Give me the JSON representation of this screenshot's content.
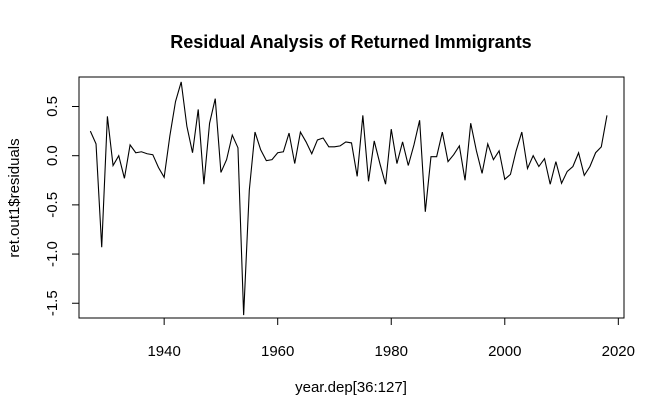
{
  "chart_data": {
    "type": "line",
    "title": "Residual Analysis of Returned Immigrants",
    "xlabel": "year.dep[36:127]",
    "ylabel": "ret.out1$residuals",
    "xlim": [
      1925,
      2021
    ],
    "ylim": [
      -1.65,
      0.8
    ],
    "x_ticks": [
      {
        "value": 1940,
        "label": "1940"
      },
      {
        "value": 1960,
        "label": "1960"
      },
      {
        "value": 1980,
        "label": "1980"
      },
      {
        "value": 2000,
        "label": "2000"
      },
      {
        "value": 2020,
        "label": "2020"
      }
    ],
    "y_ticks": [
      {
        "value": -1.5,
        "label": "-1.5"
      },
      {
        "value": -1.0,
        "label": "-1.0"
      },
      {
        "value": -0.5,
        "label": "-0.5"
      },
      {
        "value": 0.0,
        "label": "0.0"
      },
      {
        "value": 0.5,
        "label": "0.5"
      }
    ],
    "grid": false,
    "line_color": "#000000",
    "x": [
      1927,
      1928,
      1929,
      1930,
      1931,
      1932,
      1933,
      1934,
      1935,
      1936,
      1937,
      1938,
      1939,
      1940,
      1941,
      1942,
      1943,
      1944,
      1945,
      1946,
      1947,
      1948,
      1949,
      1950,
      1951,
      1952,
      1953,
      1954,
      1955,
      1956,
      1957,
      1958,
      1959,
      1960,
      1961,
      1962,
      1963,
      1964,
      1965,
      1966,
      1967,
      1968,
      1969,
      1970,
      1971,
      1972,
      1973,
      1974,
      1975,
      1976,
      1977,
      1978,
      1979,
      1980,
      1981,
      1982,
      1983,
      1984,
      1985,
      1986,
      1987,
      1988,
      1989,
      1990,
      1991,
      1992,
      1993,
      1994,
      1995,
      1996,
      1997,
      1998,
      1999,
      2000,
      2001,
      2002,
      2003,
      2004,
      2005,
      2006,
      2007,
      2008,
      2009,
      2010,
      2011,
      2012,
      2013,
      2014,
      2015,
      2016,
      2017,
      2018
    ],
    "y": [
      0.25,
      0.12,
      -0.93,
      0.4,
      -0.1,
      0.0,
      -0.23,
      0.11,
      0.03,
      0.04,
      0.02,
      0.01,
      -0.12,
      -0.22,
      0.2,
      0.55,
      0.75,
      0.3,
      0.03,
      0.47,
      -0.29,
      0.33,
      0.58,
      -0.17,
      -0.04,
      0.21,
      0.08,
      -1.62,
      -0.35,
      0.24,
      0.06,
      -0.05,
      -0.04,
      0.03,
      0.04,
      0.23,
      -0.08,
      0.24,
      0.14,
      0.02,
      0.16,
      0.18,
      0.09,
      0.09,
      0.1,
      0.14,
      0.13,
      -0.21,
      0.41,
      -0.26,
      0.15,
      -0.08,
      -0.29,
      0.27,
      -0.08,
      0.14,
      -0.1,
      0.11,
      0.36,
      -0.57,
      -0.01,
      -0.01,
      0.24,
      -0.06,
      0.01,
      0.1,
      -0.25,
      0.33,
      0.05,
      -0.18,
      0.12,
      -0.04,
      0.05,
      -0.24,
      -0.19,
      0.05,
      0.24,
      -0.13,
      0.0,
      -0.11,
      -0.03,
      -0.29,
      -0.06,
      -0.28,
      -0.16,
      -0.11,
      0.03,
      -0.2,
      -0.11,
      0.03,
      0.09,
      0.41
    ]
  }
}
